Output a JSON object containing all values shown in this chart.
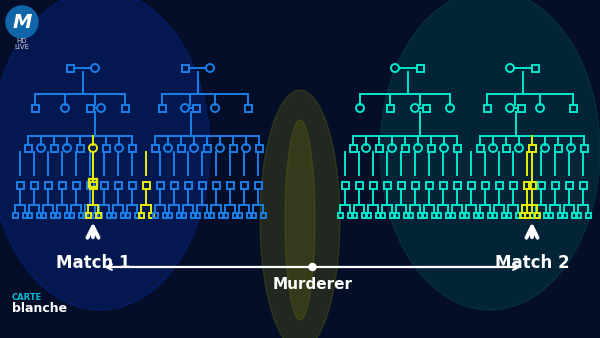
{
  "bg_color": "#050e28",
  "tree1_color": "#1a7fe8",
  "tree2_color": "#00e8cc",
  "highlight_color": "#e8f000",
  "text_color": "#ffffff",
  "label_match1": "Match 1",
  "label_match2": "Match 2",
  "label_murderer": "Murderer",
  "carte_color": "#00b8d4",
  "figsize": [
    6.0,
    3.38
  ],
  "dpi": 100,
  "lw": 1.4,
  "sz": 7,
  "rr": 4.0
}
